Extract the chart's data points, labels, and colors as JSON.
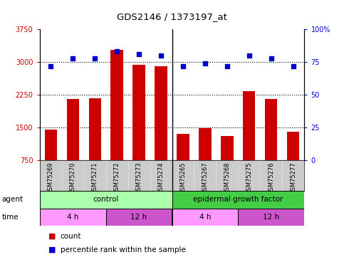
{
  "title": "GDS2146 / 1373197_at",
  "samples": [
    "GSM75269",
    "GSM75270",
    "GSM75271",
    "GSM75272",
    "GSM75273",
    "GSM75274",
    "GSM75265",
    "GSM75267",
    "GSM75268",
    "GSM75275",
    "GSM75276",
    "GSM75277"
  ],
  "bar_values": [
    1450,
    2150,
    2170,
    3280,
    2930,
    2900,
    1350,
    1490,
    1310,
    2330,
    2160,
    1410
  ],
  "percentile_values": [
    72,
    78,
    78,
    83,
    81,
    80,
    72,
    74,
    72,
    80,
    78,
    72
  ],
  "bar_color": "#cc0000",
  "percentile_color": "#0000cc",
  "ylim_left": [
    750,
    3750
  ],
  "ylim_right": [
    0,
    100
  ],
  "yticks_left": [
    750,
    1500,
    2250,
    3000,
    3750
  ],
  "yticks_right": [
    0,
    25,
    50,
    75,
    100
  ],
  "grid_values": [
    1500,
    2250,
    3000
  ],
  "control_color": "#aaffaa",
  "egf_color": "#44cc44",
  "time_4h_color": "#ff99ff",
  "time_12h_color": "#cc55cc",
  "bg_color": "#cccccc",
  "plot_bg": "#ffffff",
  "legend_count_color": "#cc0000",
  "legend_pct_color": "#0000cc",
  "fig_bg": "#ffffff"
}
